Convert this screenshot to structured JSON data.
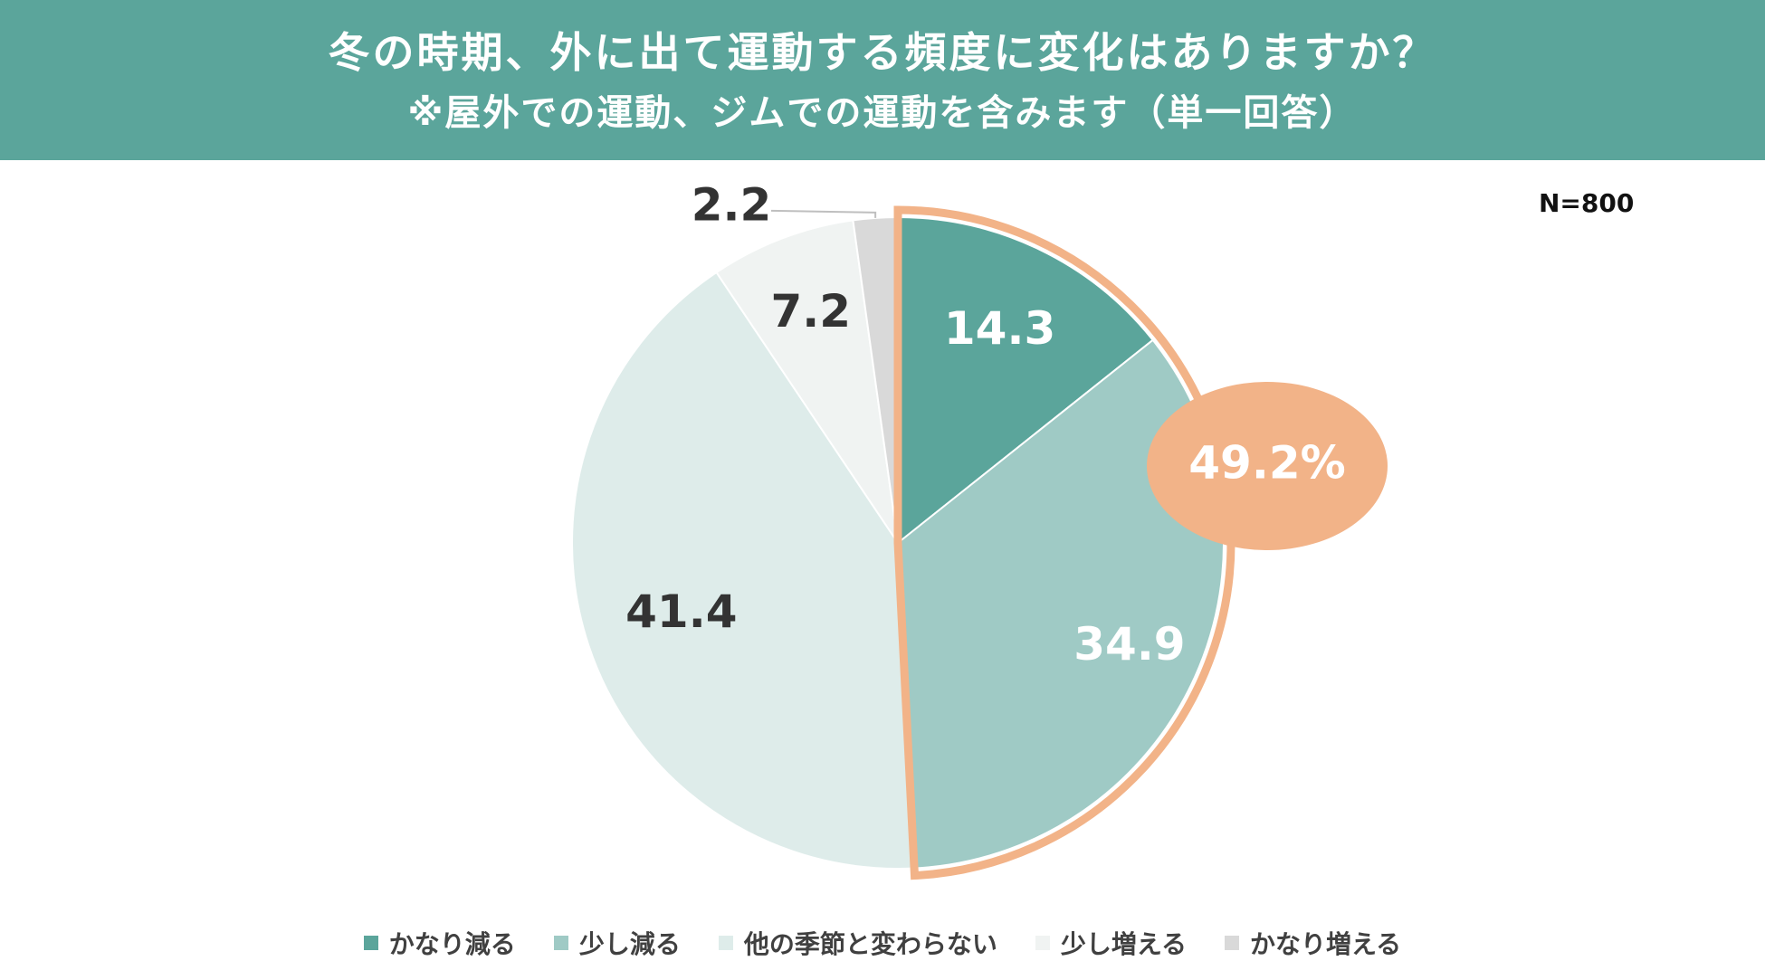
{
  "header": {
    "title": "冬の時期、外に出て運動する頻度に変化はありますか？",
    "subtitle": "※屋外での運動、ジムでの運動を含みます（単一回答）"
  },
  "sample_size": "N=800",
  "colors": {
    "header_bg": "#5ba59b",
    "highlight": "#f2b388"
  },
  "chart_data": {
    "type": "pie",
    "start": "12 o'clock",
    "direction": "clockwise",
    "slices": [
      {
        "label": "かなり減る",
        "value": 14.3,
        "display": "14.3",
        "color": "#5ba59b",
        "label_color": "#ffffff"
      },
      {
        "label": "少し減る",
        "value": 34.9,
        "display": "34.9",
        "color": "#9fcac5",
        "label_color": "#ffffff"
      },
      {
        "label": "他の季節と変わらない",
        "value": 41.4,
        "display": "41.4",
        "color": "#deecea",
        "label_color": "#333333"
      },
      {
        "label": "少し増える",
        "value": 7.2,
        "display": "7.2",
        "color": "#f0f3f2",
        "label_color": "#333333"
      },
      {
        "label": "かなり増える",
        "value": 2.2,
        "display": "2.2",
        "color": "#d9d9d9",
        "label_color": "#333333"
      }
    ],
    "highlight": {
      "slices": [
        "かなり減る",
        "少し減る"
      ],
      "total_label": "49.2%"
    },
    "legend_position": "bottom"
  }
}
